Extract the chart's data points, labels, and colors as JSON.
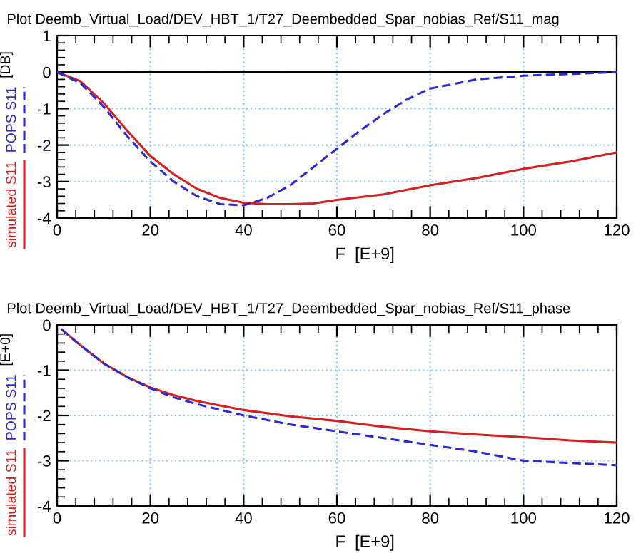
{
  "chart_data": [
    {
      "type": "line",
      "title": "Plot Deemb_Virtual_Load/DEV_HBT_1/T27_Deembedded_Spar_nobias_Ref/S11_mag",
      "xlabel": "F  [E+9]",
      "ylabel": "[DB]",
      "xlim": [
        0,
        120
      ],
      "xticks": [
        0,
        20,
        40,
        60,
        80,
        100,
        120
      ],
      "ylim": [
        -4,
        1
      ],
      "yticks": [
        1,
        0,
        -1,
        -2,
        -3,
        -4
      ],
      "grid": true,
      "legend": "left",
      "ref_lines": [
        {
          "axis": "y",
          "value": 0,
          "color": "#000000"
        }
      ],
      "series": [
        {
          "name": "simulated S11",
          "color": "#d42020",
          "line_style": "solid",
          "x": [
            0,
            5,
            10,
            15,
            20,
            25,
            30,
            35,
            40,
            45,
            50,
            55,
            60,
            70,
            80,
            90,
            100,
            110,
            120
          ],
          "values": [
            0,
            -0.25,
            -0.85,
            -1.6,
            -2.3,
            -2.8,
            -3.2,
            -3.45,
            -3.58,
            -3.62,
            -3.62,
            -3.6,
            -3.5,
            -3.35,
            -3.1,
            -2.9,
            -2.65,
            -2.45,
            -2.2
          ]
        },
        {
          "name": "POPS S11",
          "color": "#2a2ad0",
          "line_style": "dashed",
          "x": [
            0,
            5,
            10,
            15,
            20,
            25,
            30,
            35,
            40,
            45,
            50,
            55,
            60,
            65,
            70,
            75,
            80,
            90,
            100,
            110,
            120
          ],
          "values": [
            0,
            -0.3,
            -0.95,
            -1.75,
            -2.45,
            -3.0,
            -3.4,
            -3.62,
            -3.65,
            -3.45,
            -3.1,
            -2.6,
            -2.1,
            -1.6,
            -1.15,
            -0.75,
            -0.45,
            -0.2,
            -0.1,
            -0.05,
            0
          ]
        }
      ]
    },
    {
      "type": "line",
      "title": "Plot Deemb_Virtual_Load/DEV_HBT_1/T27_Deembedded_Spar_nobias_Ref/S11_phase",
      "xlabel": "F  [E+9]",
      "ylabel": "[E+0]",
      "xlim": [
        0,
        120
      ],
      "xticks": [
        0,
        20,
        40,
        60,
        80,
        100,
        120
      ],
      "ylim": [
        -4,
        0
      ],
      "yticks": [
        0,
        -1,
        -2,
        -3,
        -4
      ],
      "grid": true,
      "legend": "left",
      "series": [
        {
          "name": "simulated S11",
          "color": "#d42020",
          "line_style": "solid",
          "x": [
            1,
            5,
            10,
            15,
            20,
            25,
            30,
            40,
            50,
            60,
            70,
            80,
            90,
            100,
            110,
            120
          ],
          "values": [
            -0.1,
            -0.45,
            -0.85,
            -1.15,
            -1.38,
            -1.55,
            -1.68,
            -1.88,
            -2.02,
            -2.12,
            -2.25,
            -2.35,
            -2.42,
            -2.48,
            -2.55,
            -2.6
          ]
        },
        {
          "name": "POPS S11",
          "color": "#2a2ad0",
          "line_style": "dashed",
          "x": [
            1,
            5,
            10,
            15,
            20,
            25,
            30,
            40,
            50,
            60,
            70,
            80,
            90,
            100,
            110,
            120
          ],
          "values": [
            -0.1,
            -0.45,
            -0.85,
            -1.15,
            -1.4,
            -1.6,
            -1.75,
            -2.0,
            -2.2,
            -2.35,
            -2.5,
            -2.65,
            -2.8,
            -3.0,
            -3.05,
            -3.1
          ]
        }
      ]
    }
  ]
}
